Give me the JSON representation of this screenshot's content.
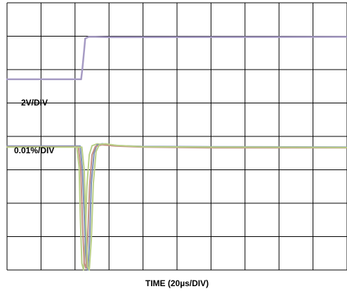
{
  "chart_data": {
    "type": "line",
    "title": "",
    "xlabel": "TIME (20µs/DIV)",
    "ylabel": "",
    "grid": true,
    "divisions": {
      "x": 10,
      "y": 8
    },
    "annotations": {
      "upper_scale": "2V/DIV",
      "lower_scale": "0.01%/DIV"
    },
    "xlim": [
      0,
      10
    ],
    "ylim": [
      0,
      8
    ],
    "colors": {
      "step": "#a69bc4",
      "settle_green": "#b9cf86",
      "settle_blue": "#7d8fb8",
      "settle_red": "#c28f85",
      "grid": "#000000"
    },
    "series": [
      {
        "key": "step",
        "x": [
          0,
          2.18,
          2.22,
          2.27,
          2.3,
          2.4,
          2.6,
          3.0,
          10
        ],
        "y": [
          5.71,
          5.71,
          6.05,
          6.6,
          6.93,
          6.98,
          6.98,
          6.97,
          6.98
        ]
      },
      {
        "key": "settle_green",
        "x": [
          0,
          2.05,
          2.12,
          2.16,
          2.2,
          2.25,
          2.3,
          2.35,
          2.42,
          2.5,
          2.65,
          2.85,
          3.2,
          4,
          6,
          10
        ],
        "y": [
          3.7,
          3.7,
          3.1,
          1.5,
          0.2,
          0.0,
          0.8,
          2.5,
          3.45,
          3.72,
          3.78,
          3.74,
          3.72,
          3.69,
          3.67,
          3.67
        ]
      },
      {
        "key": "settle_blue",
        "x": [
          0,
          2.15,
          2.22,
          2.28,
          2.33,
          2.38,
          2.43,
          2.48,
          2.56,
          2.64,
          2.8,
          3.0,
          3.3,
          4,
          6,
          10
        ],
        "y": [
          3.71,
          3.71,
          3.0,
          1.4,
          0.15,
          0.0,
          0.9,
          2.6,
          3.5,
          3.74,
          3.78,
          3.75,
          3.72,
          3.7,
          3.69,
          3.68
        ]
      },
      {
        "key": "settle_red",
        "x": [
          0,
          2.1,
          2.17,
          2.22,
          2.27,
          2.32,
          2.37,
          2.43,
          2.5,
          2.6,
          2.8,
          3.2,
          4,
          6,
          10
        ],
        "y": [
          3.69,
          3.69,
          3.05,
          1.4,
          0.2,
          0.05,
          0.85,
          2.55,
          3.45,
          3.7,
          3.75,
          3.71,
          3.68,
          3.66,
          3.66
        ]
      },
      {
        "key": "settle_green",
        "x": [
          0,
          2.2,
          2.27,
          2.32,
          2.37,
          2.42,
          2.48,
          2.54,
          2.62,
          2.72,
          2.9,
          3.2,
          4,
          6,
          10
        ],
        "y": [
          3.68,
          3.68,
          3.0,
          1.3,
          0.1,
          0.0,
          0.9,
          2.6,
          3.55,
          3.76,
          3.78,
          3.73,
          3.69,
          3.68,
          3.67
        ]
      }
    ]
  }
}
